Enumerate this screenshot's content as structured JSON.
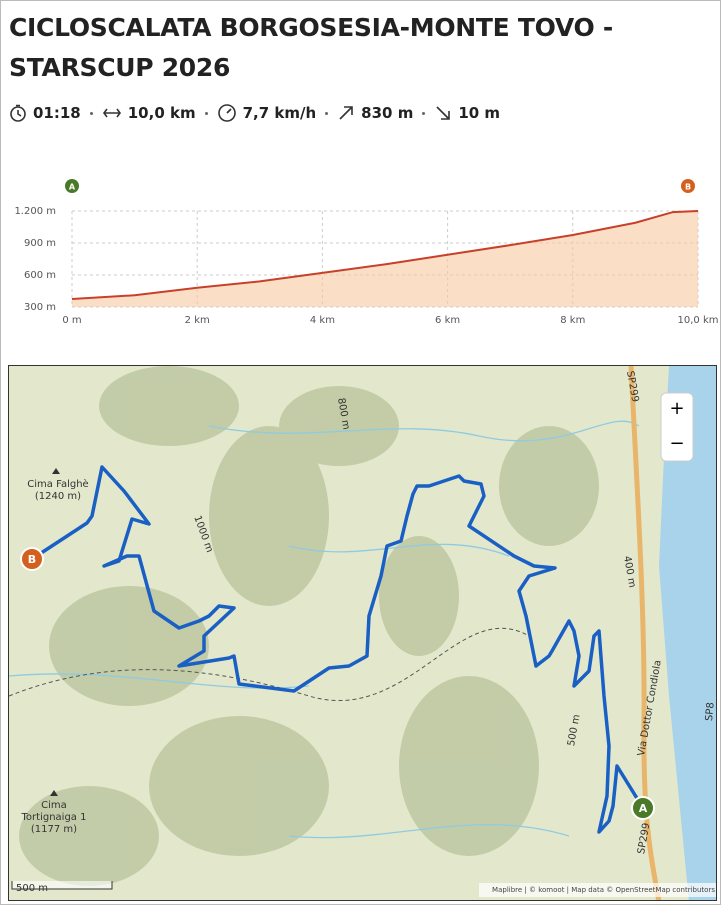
{
  "header": {
    "title_lines": [
      "CICLOSCALATA BORGOSESIA-MONTE TOVO -",
      "STARSCUP 2026"
    ]
  },
  "stats": {
    "duration": "01:18",
    "distance": "10,0 km",
    "speed": "7,7 km/h",
    "ascent": "830 m",
    "descent": "10 m"
  },
  "profile_markers": [
    "A",
    "B"
  ],
  "chart_data": {
    "type": "area",
    "x": [
      0,
      1,
      2,
      3,
      4,
      5,
      6,
      7,
      8,
      9,
      9.6,
      10
    ],
    "values": [
      375,
      410,
      480,
      540,
      620,
      700,
      790,
      880,
      975,
      1090,
      1190,
      1200
    ],
    "color": "#c8402a",
    "xlim": [
      0,
      10
    ],
    "ylim": [
      300,
      1200
    ],
    "xticks": [
      {
        "value": 0,
        "label": "0 m"
      },
      {
        "value": 2,
        "label": "2 km"
      },
      {
        "value": 4,
        "label": "4 km"
      },
      {
        "value": 6,
        "label": "6 km"
      },
      {
        "value": 8,
        "label": "8 km"
      },
      {
        "value": 10,
        "label": "10,0 km"
      }
    ],
    "yticks": [
      {
        "value": 300,
        "label": "300 m"
      },
      {
        "value": 600,
        "label": "600 m"
      },
      {
        "value": 900,
        "label": "900 m"
      },
      {
        "value": 1200,
        "label": "1.200 m"
      }
    ],
    "grid": true
  },
  "map": {
    "peaks": [
      {
        "name": "Cima Falghè",
        "elevation": "(1240 m)"
      },
      {
        "name": "Cima",
        "elevation": "Tortignaiga 1",
        "extra": "(1177 m)"
      }
    ],
    "contours": [
      "800 m",
      "1000 m",
      "400 m",
      "500 m"
    ],
    "roads": [
      "SP299",
      "SP299",
      "Via Dottor Condiola",
      "SP8"
    ],
    "markers": [
      "A",
      "B"
    ],
    "zoom": [
      "+",
      "−"
    ],
    "scale": "500 m",
    "attribution": "Maplibre | © komoot | Map data © OpenStreetMap contributors"
  }
}
